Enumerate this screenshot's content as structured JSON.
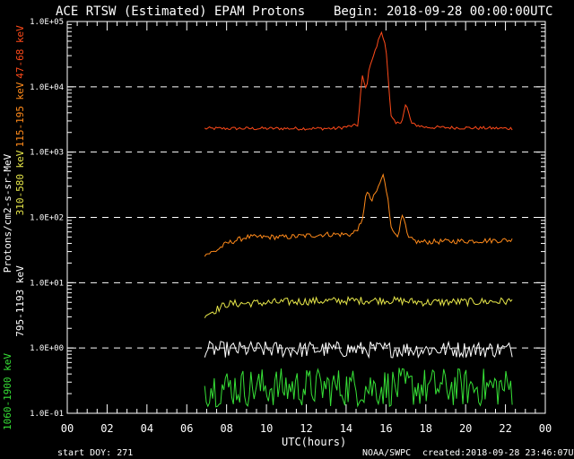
{
  "header": {
    "title": "ACE RTSW (Estimated) EPAM Protons",
    "begin": "Begin: 2018-09-28 00:00:00UTC"
  },
  "footer": {
    "start_doy": "start DOY:  271",
    "source": "NOAA/SWPC",
    "created": "created:2018-09-28 23:46:07UTC"
  },
  "chart_data": {
    "type": "line",
    "xlabel": "UTC(hours)",
    "ylabel": "Protons/cm2-s-sr-MeV",
    "x_ticks": [
      "00",
      "02",
      "04",
      "06",
      "08",
      "10",
      "12",
      "14",
      "16",
      "18",
      "20",
      "22",
      "00"
    ],
    "xlim": [
      0,
      24
    ],
    "y_scale": "log",
    "ylim": [
      0.1,
      100000
    ],
    "y_ticks": [
      "1.0E-01",
      "1.0E+00",
      "1.0E+01",
      "1.0E+02",
      "1.0E+03",
      "1.0E+04",
      "1.0E+05"
    ],
    "gridlines": "dashed at decades 1.0E+00 to 1.0E+04",
    "series": [
      {
        "name": "47-68 keV",
        "color": "#ff4a1a",
        "base": 2300,
        "noise": 0.05,
        "x": [
          6.9,
          13.5,
          14.6,
          14.8,
          15.0,
          15.2,
          15.5,
          15.75,
          16.0,
          16.25,
          16.5,
          16.8,
          17.0,
          17.3,
          18.0,
          22.4
        ],
        "y": [
          2300,
          2300,
          2600,
          15000,
          9000,
          22000,
          38000,
          70000,
          42000,
          3500,
          2700,
          3000,
          5500,
          2700,
          2400,
          2300
        ]
      },
      {
        "name": "115-195 keV",
        "color": "#ff8a1a",
        "base": 40,
        "noise": 0.08,
        "x": [
          6.9,
          7.4,
          8.0,
          9.0,
          11.0,
          13.0,
          14.3,
          14.8,
          15.0,
          15.3,
          15.6,
          15.85,
          16.1,
          16.3,
          16.6,
          16.85,
          17.1,
          17.6,
          22.4
        ],
        "y": [
          27,
          30,
          40,
          50,
          50,
          55,
          55,
          80,
          250,
          180,
          280,
          450,
          200,
          60,
          55,
          110,
          48,
          42,
          45
        ]
      },
      {
        "name": "310-580 keV",
        "color": "#e8e84a",
        "base": 5,
        "noise": 0.12,
        "x": [
          6.9,
          7.2,
          8.0,
          12.0,
          14.0,
          16.0,
          18.0,
          22.4
        ],
        "y": [
          3.3,
          3.5,
          4.7,
          5.2,
          5.3,
          5.4,
          5.0,
          5.2
        ]
      },
      {
        "name": "795-1193 keV",
        "color": "#ffffff",
        "base": 0.95,
        "noise": 0.25,
        "x": [
          6.9,
          22.4
        ],
        "y": [
          0.95,
          0.95
        ]
      },
      {
        "name": "1060-1900 keV",
        "color": "#36e036",
        "base": 0.25,
        "noise": 0.6,
        "x": [
          6.9,
          22.4
        ],
        "y": [
          0.25,
          0.25
        ]
      }
    ]
  }
}
